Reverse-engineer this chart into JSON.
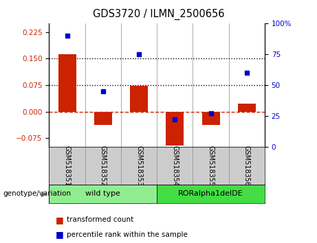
{
  "title": "GDS3720 / ILMN_2500656",
  "samples": [
    "GSM518351",
    "GSM518352",
    "GSM518353",
    "GSM518354",
    "GSM518355",
    "GSM518356"
  ],
  "bar_values": [
    0.163,
    -0.038,
    0.072,
    -0.095,
    -0.038,
    0.022
  ],
  "dot_values": [
    90,
    45,
    75,
    22,
    27,
    60
  ],
  "groups": [
    {
      "label": "wild type",
      "indices": [
        0,
        1,
        2
      ],
      "color": "#90EE90"
    },
    {
      "label": "RORalpha1delDE",
      "indices": [
        3,
        4,
        5
      ],
      "color": "#44DD44"
    }
  ],
  "bar_color": "#CC2200",
  "dot_color": "#0000CC",
  "ylim_left": [
    -0.1,
    0.25
  ],
  "ylim_right": [
    0,
    100
  ],
  "yticks_left": [
    -0.075,
    0,
    0.075,
    0.15,
    0.225
  ],
  "yticks_right": [
    0,
    25,
    50,
    75,
    100
  ],
  "hlines": [
    0.075,
    0.15
  ],
  "zero_line_color": "#CC2200",
  "hline_color": "#000000",
  "legend_items": [
    "transformed count",
    "percentile rank within the sample"
  ],
  "genotype_label": "genotype/variation",
  "xlabel_area_color": "#CCCCCC",
  "bar_width": 0.5,
  "background_color": "#ffffff"
}
